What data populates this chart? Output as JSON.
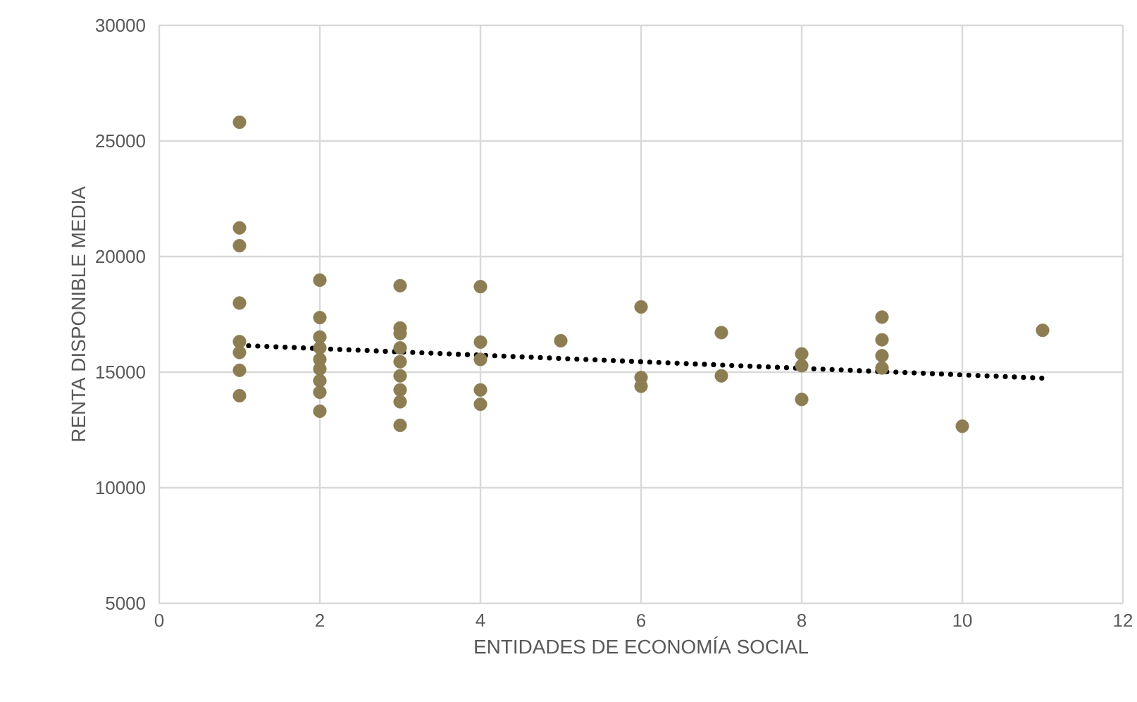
{
  "chart_data": {
    "type": "scatter",
    "xlabel": "ENTIDADES DE ECONOMÍA SOCIAL",
    "ylabel": "RENTA DISPONIBLE MEDIA",
    "xlim": [
      0,
      12
    ],
    "xticks": [
      0,
      2,
      4,
      6,
      8,
      10,
      12
    ],
    "ylim": [
      5000,
      30000
    ],
    "yticks": [
      5000,
      10000,
      15000,
      20000,
      25000,
      30000
    ],
    "grid": true,
    "marker": "circle",
    "series": [
      {
        "color": "#8c7d52",
        "x": [
          1,
          1,
          1,
          1,
          1,
          1,
          1,
          1,
          2,
          2,
          2,
          2,
          2,
          2,
          2,
          2,
          2,
          3,
          3,
          3,
          3,
          3,
          3,
          3,
          3,
          3,
          4,
          4,
          4,
          4,
          4,
          5,
          6,
          6,
          6,
          7,
          7,
          8,
          8,
          8,
          9,
          9,
          9,
          9,
          10,
          11
        ],
        "values": [
          25810,
          21240,
          20470,
          17990,
          16320,
          15850,
          15080,
          13980,
          18980,
          17360,
          16520,
          16050,
          15550,
          15140,
          14630,
          14130,
          13310,
          18740,
          16910,
          16670,
          16050,
          15450,
          14840,
          14230,
          13720,
          12700,
          18700,
          16300,
          15550,
          14230,
          13610,
          16360,
          17820,
          14770,
          14390,
          16710,
          14840,
          15790,
          15280,
          13820,
          17380,
          16400,
          15710,
          15180,
          12660,
          16810
        ]
      },
      {
        "type": "line",
        "color": "#000000",
        "line_style": "dotted",
        "marker": "none",
        "x": [
          1,
          11
        ],
        "values": [
          16160,
          14740
        ]
      }
    ]
  }
}
